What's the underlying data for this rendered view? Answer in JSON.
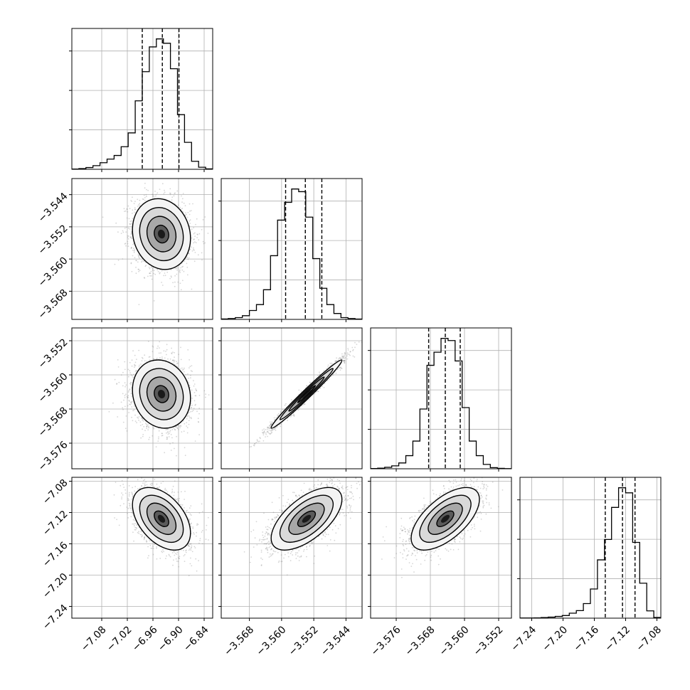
{
  "chart_data": {
    "type": "corner",
    "n_params": 4,
    "parameters": [
      {
        "index": 0,
        "range": [
          -7.15,
          -6.82
        ],
        "ticks": [
          -7.08,
          -7.02,
          -6.96,
          -6.9,
          -6.84
        ],
        "tick_labels": [
          "−7.08",
          "−7.02",
          "−6.96",
          "−6.90",
          "−6.84"
        ],
        "quantiles": [
          -6.985,
          -6.938,
          -6.899
        ],
        "histogram": {
          "bin_edges": [
            -7.15,
            -7.1335,
            -7.117,
            -7.1005,
            -7.084,
            -7.0675,
            -7.051,
            -7.0345,
            -7.018,
            -7.0015,
            -6.985,
            -6.9685,
            -6.952,
            -6.9355,
            -6.919,
            -6.9025,
            -6.886,
            -6.8695,
            -6.853,
            -6.8365,
            -6.82
          ],
          "counts": [
            2,
            5,
            12,
            25,
            45,
            70,
            95,
            155,
            250,
            470,
            670,
            840,
            895,
            865,
            690,
            375,
            185,
            55,
            14,
            3
          ]
        }
      },
      {
        "index": 1,
        "range": [
          -3.575,
          -3.54
        ],
        "ticks": [
          -3.544,
          -3.552,
          -3.56,
          -3.568
        ],
        "tick_labels": [
          "−3.544",
          "−3.552",
          "−3.560",
          "−3.568"
        ],
        "x_ticks": [
          -3.568,
          -3.56,
          -3.552,
          -3.544
        ],
        "x_tick_labels": [
          "−3.568",
          "−3.560",
          "−3.552",
          "−3.544"
        ],
        "quantiles": [
          -3.559,
          -3.5541,
          -3.55
        ],
        "histogram": {
          "bin_edges": [
            -3.575,
            -3.57325,
            -3.5715,
            -3.56975,
            -3.568,
            -3.56625,
            -3.5645,
            -3.56275,
            -3.561,
            -3.55925,
            -3.5575,
            -3.55575,
            -3.554,
            -3.55225,
            -3.5505,
            -3.54875,
            -3.547,
            -3.54525,
            -3.5435,
            -3.54175,
            -3.54
          ],
          "counts": [
            3,
            6,
            12,
            25,
            60,
            100,
            200,
            430,
            670,
            790,
            880,
            862,
            690,
            410,
            210,
            100,
            40,
            12,
            6,
            2
          ]
        }
      },
      {
        "index": 2,
        "range": [
          -3.582,
          -3.549
        ],
        "ticks": [
          -3.552,
          -3.56,
          -3.568,
          -3.576
        ],
        "tick_labels": [
          "−3.552",
          "−3.560",
          "−3.568",
          "−3.576"
        ],
        "x_ticks": [
          -3.576,
          -3.568,
          -3.56,
          -3.552
        ],
        "x_tick_labels": [
          "−3.576",
          "−3.568",
          "−3.560",
          "−3.552"
        ],
        "quantiles": [
          -3.5684,
          -3.5645,
          -3.561
        ],
        "histogram": {
          "bin_edges": [
            -3.582,
            -3.58035,
            -3.5787,
            -3.57705,
            -3.5754,
            -3.57375,
            -3.5721,
            -3.57045,
            -3.5688,
            -3.56715,
            -3.5655,
            -3.56385,
            -3.5622,
            -3.56055,
            -3.5589,
            -3.55725,
            -3.5556,
            -3.55395,
            -3.5523,
            -3.55065,
            -3.549
          ],
          "counts": [
            2,
            4,
            10,
            20,
            40,
            90,
            190,
            410,
            710,
            800,
            895,
            880,
            740,
            420,
            190,
            90,
            30,
            8,
            3,
            1
          ]
        }
      },
      {
        "index": 3,
        "range": [
          -7.255,
          -7.075
        ],
        "ticks": [
          -7.08,
          -7.12,
          -7.16,
          -7.2,
          -7.24
        ],
        "tick_labels": [
          "−7.08",
          "−7.12",
          "−7.16",
          "−7.20",
          "−7.24"
        ],
        "x_ticks": [
          -7.24,
          -7.2,
          -7.16,
          -7.12,
          -7.08
        ],
        "x_tick_labels": [
          "−7.24",
          "−7.20",
          "−7.16",
          "−7.12",
          "−7.08"
        ],
        "quantiles": [
          -7.146,
          -7.124,
          -7.108
        ],
        "histogram": {
          "bin_edges": [
            -7.255,
            -7.246,
            -7.237,
            -7.228,
            -7.219,
            -7.21,
            -7.201,
            -7.192,
            -7.183,
            -7.174,
            -7.165,
            -7.156,
            -7.147,
            -7.138,
            -7.129,
            -7.12,
            -7.111,
            -7.102,
            -7.093,
            -7.084,
            -7.075
          ],
          "counts": [
            1,
            1,
            2,
            4,
            7,
            12,
            18,
            34,
            52,
            100,
            200,
            400,
            540,
            760,
            895,
            860,
            520,
            240,
            50,
            5
          ]
        }
      }
    ],
    "pairs": [
      {
        "row": 1,
        "col": 0,
        "center": [
          -6.94,
          -3.5538
        ],
        "sigma": [
          0.034,
          0.0044
        ],
        "rho": -0.12
      },
      {
        "row": 2,
        "col": 0,
        "center": [
          -6.94,
          -3.5645
        ],
        "sigma": [
          0.034,
          0.004
        ],
        "rho": -0.12
      },
      {
        "row": 2,
        "col": 1,
        "center": [
          -3.5538,
          -3.5645
        ],
        "sigma": [
          0.0044,
          0.004
        ],
        "rho": 0.985
      },
      {
        "row": 3,
        "col": 0,
        "center": [
          -6.94,
          -7.128
        ],
        "sigma": [
          0.034,
          0.02
        ],
        "rho": -0.45
      },
      {
        "row": 3,
        "col": 1,
        "center": [
          -3.5538,
          -7.128
        ],
        "sigma": [
          0.0044,
          0.02
        ],
        "rho": 0.62
      },
      {
        "row": 3,
        "col": 2,
        "center": [
          -3.5645,
          -7.128
        ],
        "sigma": [
          0.004,
          0.02
        ],
        "rho": 0.62
      }
    ],
    "contour_levels_sigma": [
      0.5,
      1.0,
      1.5,
      2.0
    ],
    "colors": {
      "line": "#000000",
      "points": "#8a8a8a",
      "grid": "#b0b0b0",
      "background": "#ffffff"
    },
    "grid": true,
    "quantile_linestyle": "dashed"
  }
}
